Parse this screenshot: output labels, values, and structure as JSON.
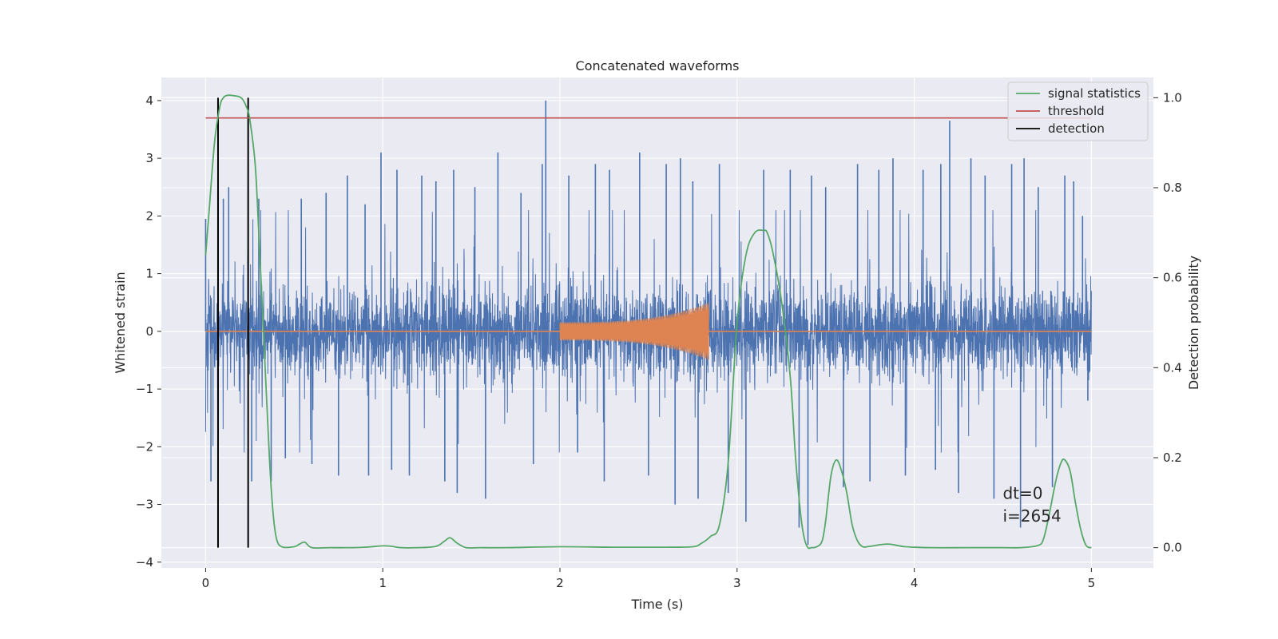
{
  "chart_data": {
    "type": "line",
    "title": "Concatenated waveforms",
    "xlabel": "Time (s)",
    "ylabel": "Whitened strain",
    "ylabel_right": "Detection probability",
    "xlim": [
      -0.25,
      5.35
    ],
    "ylim": [
      -4.1,
      4.4
    ],
    "ylim_right": [
      -0.045,
      1.045
    ],
    "xticks": [
      0,
      1,
      2,
      3,
      4,
      5
    ],
    "xtick_labels": [
      "0",
      "1",
      "2",
      "3",
      "4",
      "5"
    ],
    "yticks": [
      -4,
      -3,
      -2,
      -1,
      0,
      1,
      2,
      3,
      4
    ],
    "ytick_labels": [
      "−4",
      "−3",
      "−2",
      "−1",
      "0",
      "1",
      "2",
      "3",
      "4"
    ],
    "yticks_right": [
      0.0,
      0.2,
      0.4,
      0.6,
      0.8,
      1.0
    ],
    "ytick_labels_right": [
      "0.0",
      "0.2",
      "0.4",
      "0.6",
      "0.8",
      "1.0"
    ],
    "grid": true,
    "legend_position": "top-right",
    "colors": {
      "strain": "#4c72b0",
      "template": "#dd8452",
      "signal": "#55a868",
      "threshold": "#c44e52",
      "detection": "#000000",
      "background": "#eaeaf2",
      "grid": "#ffffff"
    },
    "series": [
      {
        "name": "",
        "role": "strain",
        "axis": "left",
        "x_range": [
          0,
          5
        ],
        "noise_sigma": 0.38,
        "spike_peaks": [
          {
            "x": 0.0,
            "y": 1.95
          },
          {
            "x": 0.03,
            "y": -2.6
          },
          {
            "x": 0.07,
            "y": -2.5
          },
          {
            "x": 0.1,
            "y": 2.3
          },
          {
            "x": 0.13,
            "y": 2.5
          },
          {
            "x": 0.24,
            "y": 2.8
          },
          {
            "x": 0.26,
            "y": -2.6
          },
          {
            "x": 0.3,
            "y": 2.3
          },
          {
            "x": 0.37,
            "y": -2.6
          },
          {
            "x": 0.45,
            "y": -2.2
          },
          {
            "x": 0.54,
            "y": 2.3
          },
          {
            "x": 0.6,
            "y": -2.3
          },
          {
            "x": 0.68,
            "y": 2.4
          },
          {
            "x": 0.75,
            "y": -2.5
          },
          {
            "x": 0.8,
            "y": 2.7
          },
          {
            "x": 0.9,
            "y": 2.2
          },
          {
            "x": 0.92,
            "y": -2.5
          },
          {
            "x": 0.99,
            "y": 3.1
          },
          {
            "x": 1.08,
            "y": 2.8
          },
          {
            "x": 1.05,
            "y": -2.4
          },
          {
            "x": 1.15,
            "y": -2.5
          },
          {
            "x": 1.22,
            "y": 2.7
          },
          {
            "x": 1.3,
            "y": 2.6
          },
          {
            "x": 1.35,
            "y": -2.6
          },
          {
            "x": 1.4,
            "y": 2.8
          },
          {
            "x": 1.42,
            "y": -2.8
          },
          {
            "x": 1.52,
            "y": 2.5
          },
          {
            "x": 1.58,
            "y": -2.9
          },
          {
            "x": 1.65,
            "y": 3.1
          },
          {
            "x": 1.78,
            "y": 2.4
          },
          {
            "x": 1.85,
            "y": -2.3
          },
          {
            "x": 1.9,
            "y": 2.9
          },
          {
            "x": 1.92,
            "y": 4.0
          },
          {
            "x": 2.05,
            "y": 2.7
          },
          {
            "x": 2.1,
            "y": -2.1
          },
          {
            "x": 2.2,
            "y": 2.9
          },
          {
            "x": 2.25,
            "y": -2.6
          },
          {
            "x": 2.28,
            "y": 2.8
          },
          {
            "x": 2.45,
            "y": 3.1
          },
          {
            "x": 2.5,
            "y": -2.5
          },
          {
            "x": 2.6,
            "y": 2.9
          },
          {
            "x": 2.65,
            "y": -3.0
          },
          {
            "x": 2.68,
            "y": 3.0
          },
          {
            "x": 2.75,
            "y": 2.6
          },
          {
            "x": 2.78,
            "y": -2.9
          },
          {
            "x": 2.9,
            "y": 2.9
          },
          {
            "x": 2.95,
            "y": -2.8
          },
          {
            "x": 3.05,
            "y": -3.3
          },
          {
            "x": 3.15,
            "y": 2.8
          },
          {
            "x": 3.3,
            "y": 2.8
          },
          {
            "x": 3.35,
            "y": -3.4
          },
          {
            "x": 3.4,
            "y": -3.7
          },
          {
            "x": 3.42,
            "y": 2.7
          },
          {
            "x": 3.5,
            "y": 2.5
          },
          {
            "x": 3.6,
            "y": -2.7
          },
          {
            "x": 3.68,
            "y": 2.9
          },
          {
            "x": 3.75,
            "y": -2.6
          },
          {
            "x": 3.8,
            "y": 2.8
          },
          {
            "x": 3.88,
            "y": 3.0
          },
          {
            "x": 3.95,
            "y": -2.5
          },
          {
            "x": 4.05,
            "y": 2.8
          },
          {
            "x": 4.12,
            "y": -2.4
          },
          {
            "x": 4.15,
            "y": 2.9
          },
          {
            "x": 4.2,
            "y": 3.65
          },
          {
            "x": 4.25,
            "y": -2.8
          },
          {
            "x": 4.32,
            "y": 3.0
          },
          {
            "x": 4.4,
            "y": 2.7
          },
          {
            "x": 4.45,
            "y": -2.9
          },
          {
            "x": 4.55,
            "y": 2.9
          },
          {
            "x": 4.6,
            "y": -3.4
          },
          {
            "x": 4.62,
            "y": 3.0
          },
          {
            "x": 4.7,
            "y": 2.5
          },
          {
            "x": 4.78,
            "y": -2.7
          },
          {
            "x": 4.85,
            "y": 2.7
          },
          {
            "x": 4.9,
            "y": 2.6
          },
          {
            "x": 4.95,
            "y": 2.0
          },
          {
            "x": 4.98,
            "y": -1.2
          }
        ]
      },
      {
        "name": "",
        "role": "template",
        "axis": "left",
        "baseline": 0,
        "baseline_range": [
          0,
          5
        ],
        "chirp_range": [
          2.0,
          2.84
        ],
        "chirp_amplitude_start": 0.16,
        "chirp_amplitude_end": 0.5
      },
      {
        "name": "signal statistics",
        "role": "signal",
        "axis": "right",
        "x": [
          0.0,
          0.02,
          0.05,
          0.08,
          0.1,
          0.12,
          0.15,
          0.2,
          0.23,
          0.25,
          0.28,
          0.3,
          0.33,
          0.36,
          0.38,
          0.4,
          0.43,
          0.5,
          0.53,
          0.56,
          0.6,
          0.7,
          0.8,
          0.9,
          1.0,
          1.05,
          1.1,
          1.2,
          1.3,
          1.35,
          1.38,
          1.42,
          1.47,
          1.55,
          1.7,
          2.0,
          2.3,
          2.6,
          2.75,
          2.8,
          2.85,
          2.9,
          2.95,
          3.0,
          3.05,
          3.1,
          3.15,
          3.17,
          3.2,
          3.25,
          3.3,
          3.33,
          3.36,
          3.38,
          3.4,
          3.42,
          3.45,
          3.48,
          3.5,
          3.53,
          3.56,
          3.59,
          3.62,
          3.65,
          3.68,
          3.71,
          3.75,
          3.85,
          3.95,
          4.1,
          4.3,
          4.5,
          4.6,
          4.7,
          4.73,
          4.76,
          4.8,
          4.83,
          4.85,
          4.88,
          4.91,
          4.94,
          4.97,
          5.0
        ],
        "y": [
          0.65,
          0.75,
          0.9,
          0.98,
          1.0,
          1.005,
          1.005,
          1.0,
          0.98,
          0.95,
          0.85,
          0.7,
          0.45,
          0.2,
          0.08,
          0.02,
          0.002,
          0.002,
          0.008,
          0.012,
          0.0,
          0.0,
          0.0,
          0.001,
          0.004,
          0.003,
          0.0,
          0.0,
          0.003,
          0.015,
          0.022,
          0.01,
          0.0,
          0.0,
          0.0,
          0.002,
          0.001,
          0.001,
          0.002,
          0.01,
          0.025,
          0.05,
          0.19,
          0.5,
          0.65,
          0.7,
          0.705,
          0.7,
          0.66,
          0.55,
          0.38,
          0.2,
          0.07,
          0.02,
          0.0,
          0.0,
          0.002,
          0.015,
          0.06,
          0.16,
          0.195,
          0.17,
          0.12,
          0.05,
          0.015,
          0.002,
          0.003,
          0.008,
          0.002,
          0.0,
          0.0,
          0.0,
          0.0,
          0.005,
          0.02,
          0.07,
          0.15,
          0.19,
          0.195,
          0.17,
          0.1,
          0.04,
          0.005,
          0.0
        ]
      },
      {
        "name": "threshold",
        "role": "threshold",
        "axis": "right",
        "x": [
          0,
          5
        ],
        "y": [
          0.955,
          0.955
        ]
      },
      {
        "name": "detection",
        "role": "detection",
        "axis": "right",
        "x": [
          0.07,
          0.24
        ],
        "y_range": [
          0.0,
          1.0
        ]
      }
    ],
    "annotations": [
      {
        "text": "dt=0",
        "x": 4.5,
        "y": -2.9
      },
      {
        "text": "i=2654",
        "x": 4.5,
        "y": -3.3
      }
    ]
  }
}
